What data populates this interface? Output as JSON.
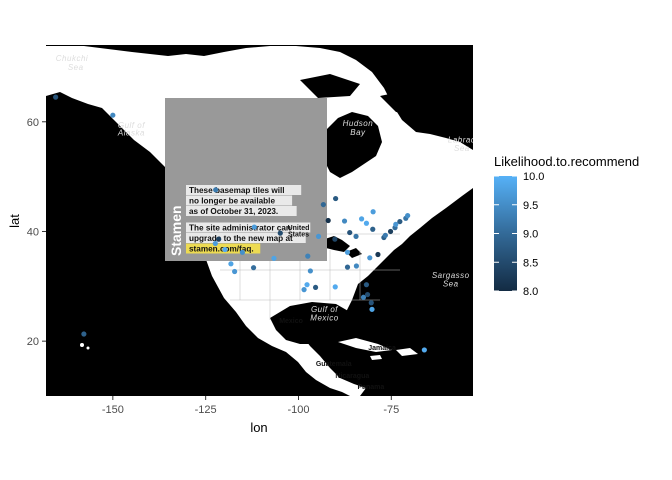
{
  "chart_data": {
    "type": "scatter",
    "xlabel": "lon",
    "ylabel": "lat",
    "xlim": [
      -168,
      -53
    ],
    "ylim": [
      10,
      74
    ],
    "x_ticks": [
      -150,
      -125,
      -100,
      -75
    ],
    "x_tick_labels": [
      "-150",
      "-125",
      "-100",
      "-75"
    ],
    "y_ticks": [
      20,
      40,
      60
    ],
    "y_tick_labels": [
      "20",
      "40",
      "60"
    ],
    "grid": false,
    "color_scale": {
      "title": "Likelihood.to.recommend",
      "min": 8.0,
      "max": 10.0,
      "ticks": [
        10.0,
        9.5,
        9.0,
        8.5,
        8.0
      ],
      "tick_labels": [
        "10.0",
        "9.5",
        "9.0",
        "8.5",
        "8.0"
      ],
      "low_color": "#132B43",
      "high_color": "#56B1F7",
      "legend_position": "right"
    },
    "points": [
      {
        "lon": -165.4,
        "lat": 64.5,
        "value": 8.6
      },
      {
        "lon": -150.0,
        "lat": 61.2,
        "value": 9.4
      },
      {
        "lon": -157.8,
        "lat": 21.3,
        "value": 8.8
      },
      {
        "lon": -122.3,
        "lat": 47.6,
        "value": 9.2
      },
      {
        "lon": -122.4,
        "lat": 37.8,
        "value": 9.7
      },
      {
        "lon": -118.2,
        "lat": 34.1,
        "value": 9.8
      },
      {
        "lon": -117.2,
        "lat": 32.7,
        "value": 9.6
      },
      {
        "lon": -121.5,
        "lat": 38.6,
        "value": 8.3
      },
      {
        "lon": -119.8,
        "lat": 36.7,
        "value": 9.9
      },
      {
        "lon": -115.1,
        "lat": 36.2,
        "value": 9.5
      },
      {
        "lon": -112.1,
        "lat": 33.4,
        "value": 9.0
      },
      {
        "lon": -111.9,
        "lat": 40.8,
        "value": 9.7
      },
      {
        "lon": -104.9,
        "lat": 39.7,
        "value": 8.5
      },
      {
        "lon": -106.6,
        "lat": 35.1,
        "value": 9.8
      },
      {
        "lon": -97.7,
        "lat": 30.3,
        "value": 9.9
      },
      {
        "lon": -96.8,
        "lat": 32.8,
        "value": 9.5
      },
      {
        "lon": -95.4,
        "lat": 29.8,
        "value": 8.7
      },
      {
        "lon": -98.5,
        "lat": 29.4,
        "value": 9.6
      },
      {
        "lon": -97.5,
        "lat": 35.5,
        "value": 9.3
      },
      {
        "lon": -94.6,
        "lat": 39.1,
        "value": 9.6
      },
      {
        "lon": -90.2,
        "lat": 38.6,
        "value": 8.4
      },
      {
        "lon": -93.3,
        "lat": 44.9,
        "value": 8.9
      },
      {
        "lon": -87.6,
        "lat": 41.9,
        "value": 9.4
      },
      {
        "lon": -86.2,
        "lat": 39.8,
        "value": 8.6
      },
      {
        "lon": -83.0,
        "lat": 42.3,
        "value": 9.8
      },
      {
        "lon": -84.5,
        "lat": 39.1,
        "value": 9.1
      },
      {
        "lon": -81.7,
        "lat": 41.5,
        "value": 9.9
      },
      {
        "lon": -80.0,
        "lat": 40.4,
        "value": 8.8
      },
      {
        "lon": -86.8,
        "lat": 36.2,
        "value": 9.7
      },
      {
        "lon": -84.4,
        "lat": 33.7,
        "value": 9.4
      },
      {
        "lon": -86.8,
        "lat": 33.5,
        "value": 8.9
      },
      {
        "lon": -90.1,
        "lat": 29.9,
        "value": 9.9
      },
      {
        "lon": -80.8,
        "lat": 35.2,
        "value": 9.6
      },
      {
        "lon": -78.6,
        "lat": 35.8,
        "value": 8.2
      },
      {
        "lon": -81.7,
        "lat": 30.3,
        "value": 8.7
      },
      {
        "lon": -82.5,
        "lat": 28.0,
        "value": 9.3
      },
      {
        "lon": -81.4,
        "lat": 28.5,
        "value": 8.5
      },
      {
        "lon": -80.2,
        "lat": 25.8,
        "value": 9.8
      },
      {
        "lon": -80.4,
        "lat": 27.0,
        "value": 8.6
      },
      {
        "lon": -77.0,
        "lat": 38.9,
        "value": 8.8
      },
      {
        "lon": -76.6,
        "lat": 39.3,
        "value": 9.2
      },
      {
        "lon": -75.2,
        "lat": 40.0,
        "value": 8.3
      },
      {
        "lon": -74.0,
        "lat": 40.7,
        "value": 9.0
      },
      {
        "lon": -73.8,
        "lat": 41.3,
        "value": 9.6
      },
      {
        "lon": -72.7,
        "lat": 41.8,
        "value": 8.7
      },
      {
        "lon": -71.1,
        "lat": 42.4,
        "value": 9.1
      },
      {
        "lon": -70.6,
        "lat": 42.9,
        "value": 9.5
      },
      {
        "lon": -79.9,
        "lat": 43.6,
        "value": 9.7
      },
      {
        "lon": -92.0,
        "lat": 42.0,
        "value": 8.1
      },
      {
        "lon": -90.0,
        "lat": 46.0,
        "value": 8.7
      },
      {
        "lon": -66.1,
        "lat": 18.4,
        "value": 9.9
      }
    ]
  },
  "map": {
    "stamen_word": "Stamen",
    "notice_lines_1": [
      "These basemap tiles will",
      "no longer be available",
      "as of October 31, 2023."
    ],
    "notice_lines_2": [
      "The site administrator can",
      "upgrade to the new map at"
    ],
    "notice_link": "stamen.com/faq.",
    "labels": [
      {
        "text": "Chukchi",
        "lon": -161,
        "lat": 71.1
      },
      {
        "text": "Sea",
        "lon": -160,
        "lat": 69.4
      },
      {
        "text": "Gulf of",
        "lon": -145,
        "lat": 58.9
      },
      {
        "text": "Alaska",
        "lon": -145,
        "lat": 57.5
      },
      {
        "text": "Hudson",
        "lon": -84,
        "lat": 59.2
      },
      {
        "text": "Bay",
        "lon": -84,
        "lat": 57.6
      },
      {
        "text": "Labrad",
        "lon": -56,
        "lat": 56.2
      },
      {
        "text": "Sea",
        "lon": -56,
        "lat": 54.7
      },
      {
        "text": "Sargasso",
        "lon": -59,
        "lat": 31.5
      },
      {
        "text": "Sea",
        "lon": -59,
        "lat": 30.0
      },
      {
        "text": "Gulf of",
        "lon": -93,
        "lat": 25.3
      },
      {
        "text": "Mexico",
        "lon": -93,
        "lat": 23.8
      }
    ],
    "dark_labels": [
      {
        "text": "United",
        "lon": -100,
        "lat": 40.3
      },
      {
        "text": "States",
        "lon": -100,
        "lat": 39.1
      },
      {
        "text": "Mexico",
        "lon": -102,
        "lat": 23.3
      },
      {
        "text": "Guatemala",
        "lon": -90.5,
        "lat": 15.5
      },
      {
        "text": "Nicaragua",
        "lon": -85.5,
        "lat": 13.3
      },
      {
        "text": "Jamaica",
        "lon": -77.5,
        "lat": 18.4
      },
      {
        "text": "Panama",
        "lon": -80.5,
        "lat": 11.3
      }
    ]
  }
}
